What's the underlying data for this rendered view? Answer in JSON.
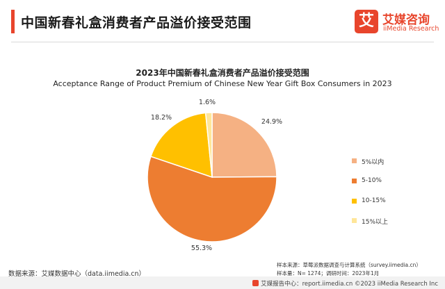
{
  "header": {
    "title": "中国新春礼盒消费者产品溢价接受范围",
    "logo_glyph": "艾",
    "logo_cn": "艾媒咨询",
    "logo_en": "iiMedia Research",
    "accent": "#e8452c"
  },
  "chart_data": {
    "type": "pie",
    "title": "2023年中国新春礼盒消费者产品溢价接受范围",
    "subtitle": "Acceptance Range of Product Premium of Chinese New Year Gift Box Consumers in 2023",
    "slices": [
      {
        "label": "5%以内",
        "value": 24.9,
        "color": "#f5b183"
      },
      {
        "label": "5-10%",
        "value": 55.3,
        "color": "#ed7d31"
      },
      {
        "label": "10-15%",
        "value": 18.2,
        "color": "#ffc000"
      },
      {
        "label": "15%以上",
        "value": 1.6,
        "color": "#ffe699"
      }
    ],
    "value_labels": [
      "24.9%",
      "55.3%",
      "18.2%",
      "1.6%"
    ],
    "legend_position": "right"
  },
  "footer": {
    "source": "数据来源：艾媒数据中心（data.iimedia.cn）",
    "sample_source": "样本来源：草莓派数据调查与计算系统（survey.iimedia.cn）",
    "sample_size": "样本量：N= 1274；调研时间：2023年1月",
    "report": "艾媒报告中心：report.iimedia.cn ©2023 iiMedia Research Inc"
  }
}
